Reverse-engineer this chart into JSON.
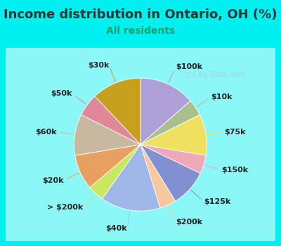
{
  "title": "Income distribution in Ontario, OH (%)",
  "subtitle": "All residents",
  "bg_color": "#00EFEF",
  "chart_bg": "#e8f5ee",
  "watermark": "City-Data.com",
  "slices": [
    {
      "label": "$100k",
      "value": 13.5,
      "color": "#b0a0d8"
    },
    {
      "label": "$10k",
      "value": 4.0,
      "color": "#a8c090"
    },
    {
      "label": "$75k",
      "value": 10.0,
      "color": "#f0e060"
    },
    {
      "label": "$150k",
      "value": 4.5,
      "color": "#f0a8b8"
    },
    {
      "label": "$125k",
      "value": 9.0,
      "color": "#8090d0"
    },
    {
      "label": "$200k",
      "value": 4.0,
      "color": "#f5c8a0"
    },
    {
      "label": "$40k",
      "value": 14.5,
      "color": "#a0b8e8"
    },
    {
      "label": "> $200k",
      "value": 4.0,
      "color": "#c8e860"
    },
    {
      "label": "$20k",
      "value": 8.5,
      "color": "#e8a060"
    },
    {
      "label": "$60k",
      "value": 10.0,
      "color": "#c8b8a0"
    },
    {
      "label": "$50k",
      "value": 5.5,
      "color": "#e08898"
    },
    {
      "label": "$30k",
      "value": 12.0,
      "color": "#c8a020"
    }
  ],
  "title_fontsize": 13,
  "subtitle_fontsize": 10,
  "label_fontsize": 8
}
